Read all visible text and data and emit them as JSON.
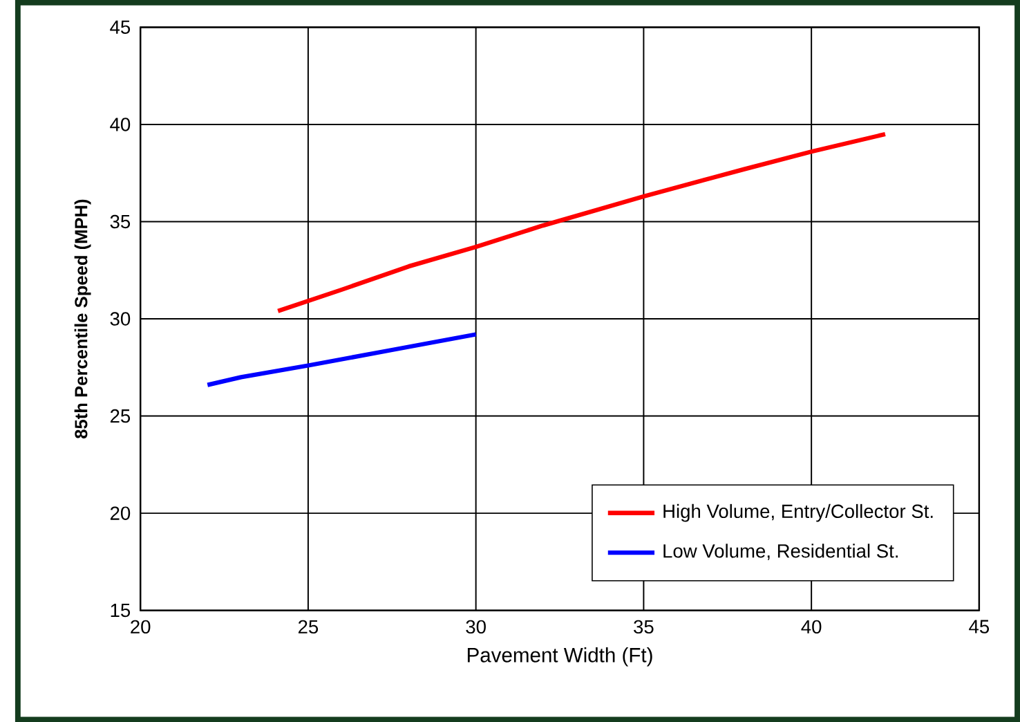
{
  "chart_data": {
    "type": "line",
    "xlabel": "Pavement Width (Ft)",
    "ylabel": "85th Percentile Speed (MPH)",
    "xlim": [
      20,
      45
    ],
    "xticks": [
      20,
      25,
      30,
      35,
      40,
      45
    ],
    "ylim": [
      15,
      45
    ],
    "yticks": [
      15,
      20,
      25,
      30,
      35,
      40,
      45
    ],
    "grid": true,
    "legend": "bottom right",
    "marker": "none",
    "line_style": "solid",
    "series": [
      {
        "name": "High Volume, Entry/Collector St.",
        "color": "#ff0000",
        "x": [
          24.1,
          26,
          28,
          30,
          32,
          35,
          38,
          40,
          42.2
        ],
        "values": [
          30.4,
          31.5,
          32.7,
          33.7,
          34.8,
          36.3,
          37.7,
          38.6,
          39.5
        ]
      },
      {
        "name": "Low Volume, Residential St.",
        "color": "#0000ff",
        "x": [
          22,
          23,
          25,
          27.5,
          30
        ],
        "values": [
          26.6,
          27.0,
          27.6,
          28.4,
          29.2
        ]
      }
    ]
  }
}
